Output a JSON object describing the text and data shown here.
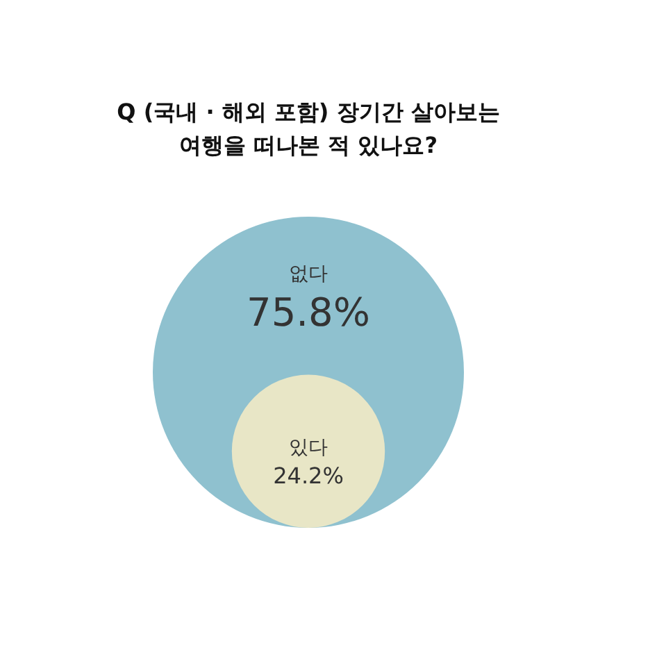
{
  "chart_data": {
    "type": "other",
    "title": "Q (국내 · 해외 포함) 장기간 살아보는\n여행을 떠나본 적 있나요?",
    "categories": [
      "없다",
      "있다"
    ],
    "values": [
      75.8,
      24.2
    ],
    "value_labels": [
      "75.8%",
      "24.2%"
    ],
    "colors": [
      "#8fc1cf",
      "#e8e6c6"
    ]
  }
}
